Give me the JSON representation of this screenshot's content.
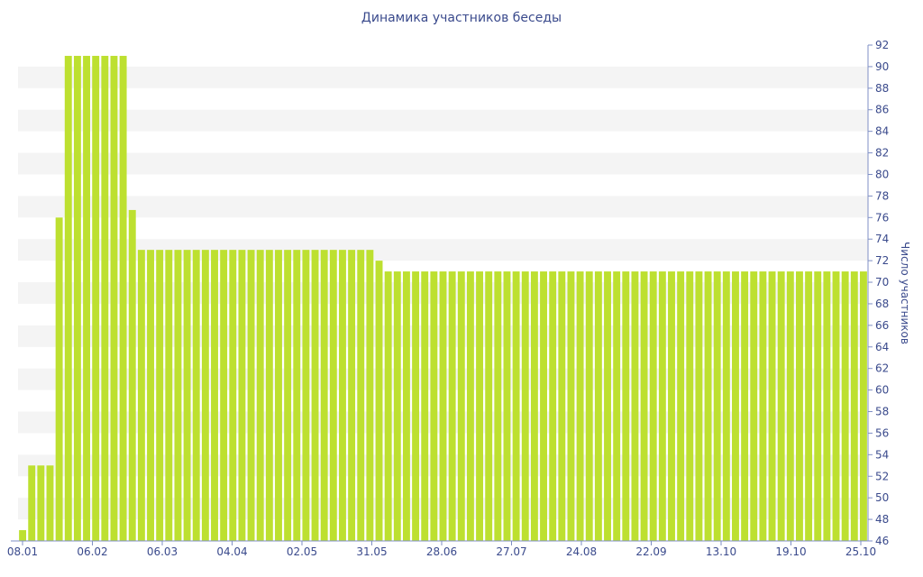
{
  "chart_data": {
    "type": "bar",
    "title": "Динамика участников беседы",
    "xlabel": "",
    "ylabel": "Число участников",
    "ylim": [
      46,
      92
    ],
    "y_ticks": [
      46,
      48,
      50,
      52,
      54,
      56,
      58,
      60,
      62,
      64,
      66,
      68,
      70,
      72,
      74,
      76,
      78,
      80,
      82,
      84,
      86,
      88,
      90,
      92
    ],
    "x_tick_labels": [
      "08.01",
      "06.02",
      "06.03",
      "04.04",
      "02.05",
      "31.05",
      "28.06",
      "27.07",
      "24.08",
      "22.09",
      "13.10",
      "19.10",
      "25.10"
    ],
    "y_axis_position": "right",
    "grid": "alternating horizontal bands",
    "colors": {
      "bar": "#bde030",
      "text": "#3a4a8c",
      "axis": "#7f8fc4",
      "band": "#f4f4f4"
    },
    "values": [
      47,
      53,
      53,
      53,
      76,
      91,
      91,
      91,
      91,
      91,
      91,
      91,
      76.7,
      73,
      73,
      73,
      73,
      73,
      73,
      73,
      73,
      73,
      73,
      73,
      73,
      73,
      73,
      73,
      73,
      73,
      73,
      73,
      73,
      73,
      73,
      73,
      73,
      73,
      73,
      72,
      71,
      71,
      71,
      71,
      71,
      71,
      71,
      71,
      71,
      71,
      71,
      71,
      71,
      71,
      71,
      71,
      71,
      71,
      71,
      71,
      71,
      71,
      71,
      71,
      71,
      71,
      71,
      71,
      71,
      71,
      71,
      71,
      71,
      71,
      71,
      71,
      71,
      71,
      71,
      71,
      71,
      71,
      71,
      71,
      71,
      71,
      71,
      71,
      71,
      71,
      71,
      71,
      71
    ]
  }
}
